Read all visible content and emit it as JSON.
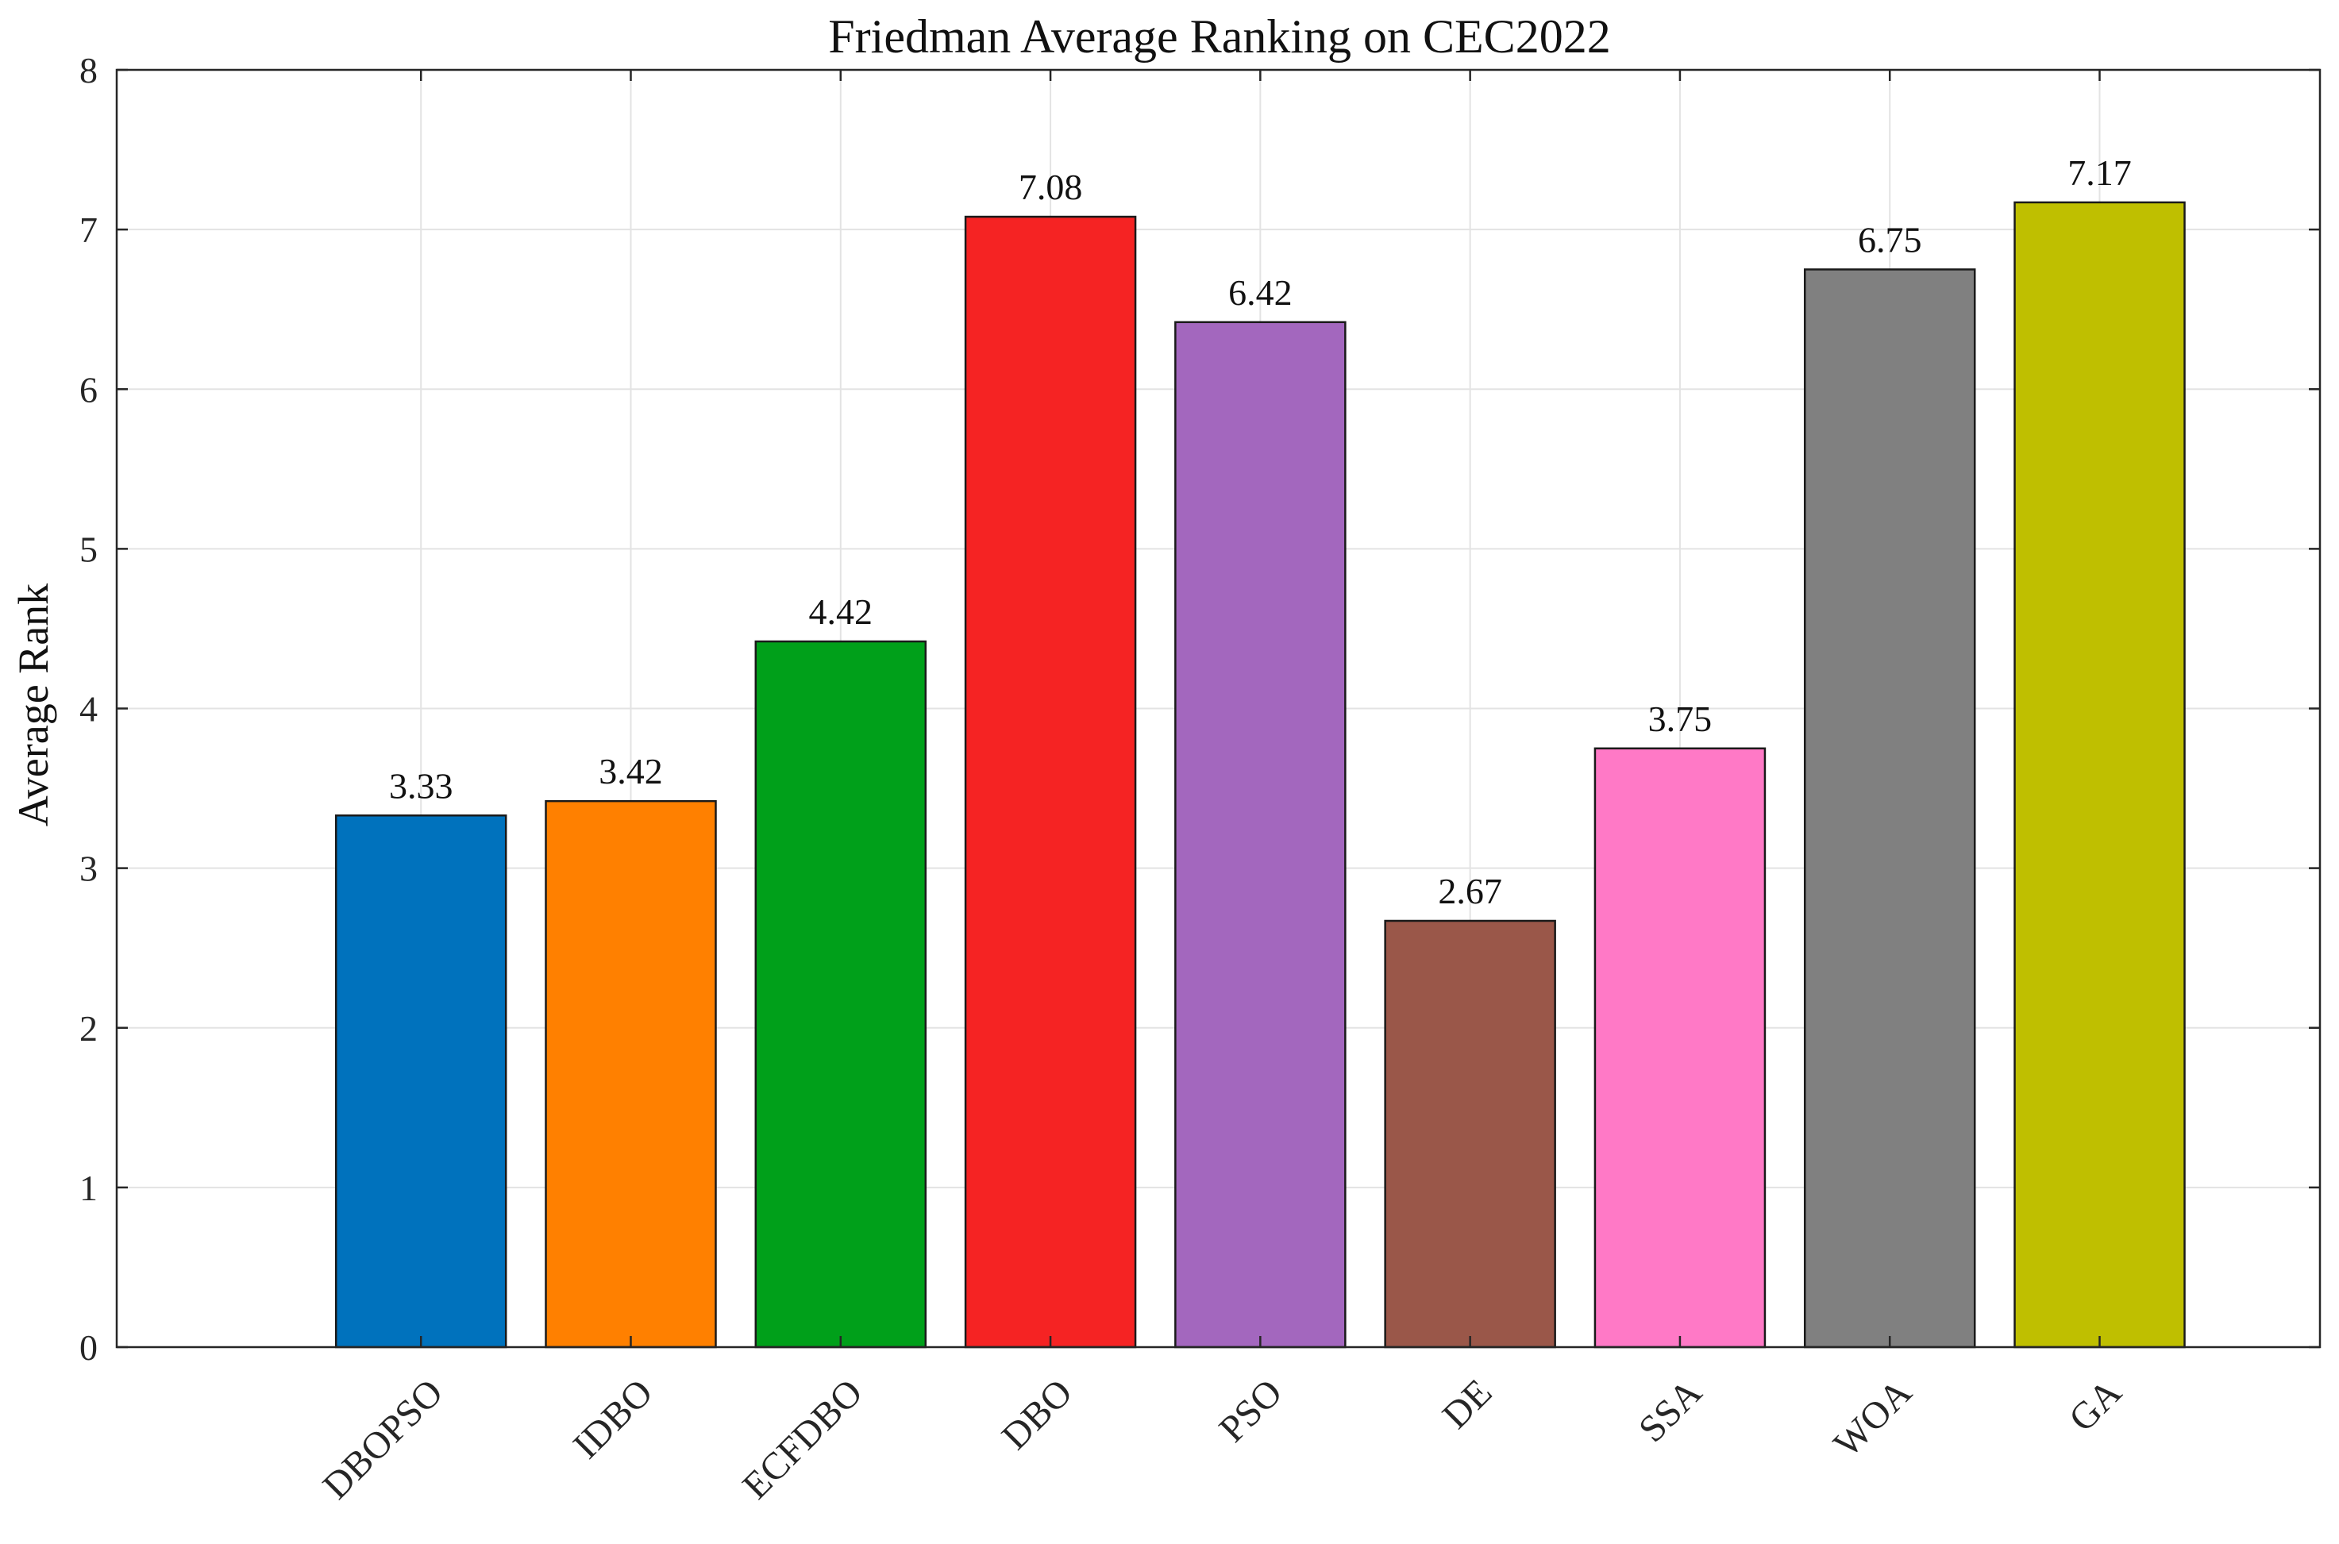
{
  "chart_data": {
    "type": "bar",
    "title": "Friedman Average Ranking on CEC2022",
    "xlabel": "",
    "ylabel": "Average Rank",
    "ylim": [
      0,
      8
    ],
    "yticks": [
      0,
      1,
      2,
      3,
      4,
      5,
      6,
      7,
      8
    ],
    "grid": true,
    "categories": [
      "DBOPSO",
      "IDBO",
      "ECFDBO",
      "DBO",
      "PSO",
      "DE",
      "SSA",
      "WOA",
      "GA"
    ],
    "values": [
      3.33,
      3.42,
      4.42,
      7.08,
      6.42,
      2.67,
      3.75,
      6.75,
      7.17
    ],
    "data_labels": [
      "3.33",
      "3.42",
      "4.42",
      "7.08",
      "6.42",
      "2.67",
      "3.75",
      "6.75",
      "7.17"
    ],
    "colors": [
      "#0072BD",
      "#FF8000",
      "#00A01A",
      "#F52323",
      "#A367BE",
      "#9A5749",
      "#FF79C6",
      "#808080",
      "#BFBF00"
    ]
  }
}
